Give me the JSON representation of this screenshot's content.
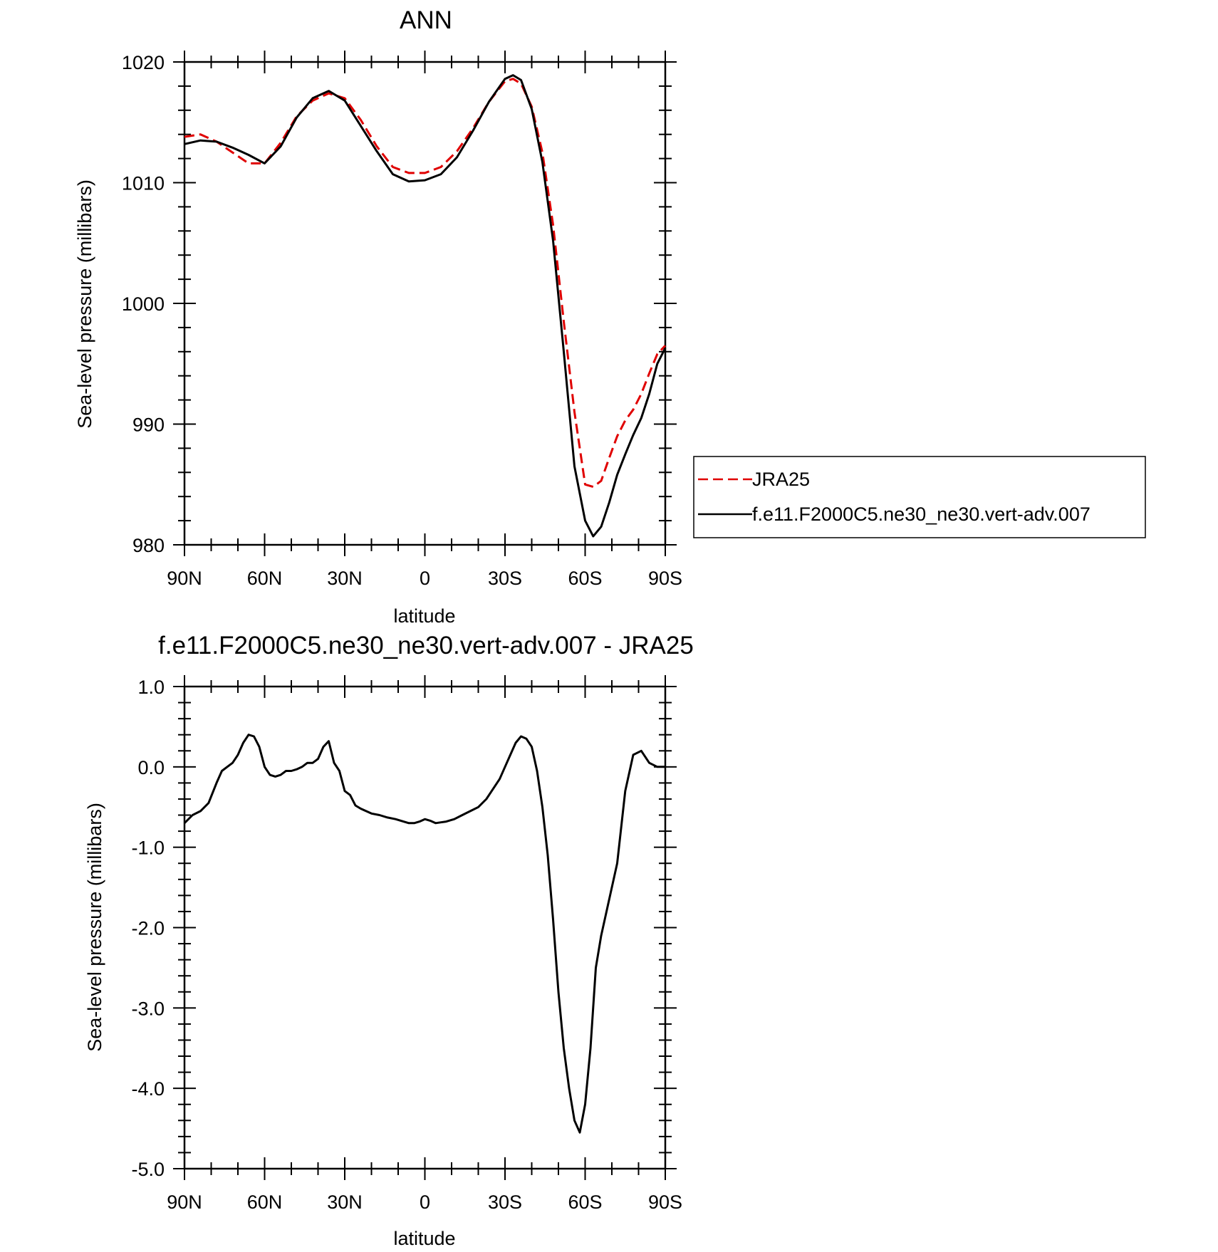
{
  "chart_data": [
    {
      "type": "line",
      "title": "ANN",
      "xlabel": "latitude",
      "ylabel": "Sea-level pressure (millibars)",
      "xlim": [
        90,
        -90
      ],
      "ylim": [
        980,
        1020
      ],
      "x_ticks": [
        90,
        60,
        30,
        0,
        -30,
        -60,
        -90
      ],
      "x_tick_labels": [
        "90N",
        "60N",
        "30N",
        "0",
        "30S",
        "60S",
        "90S"
      ],
      "y_ticks": [
        980,
        990,
        1000,
        1010,
        1020
      ],
      "y_tick_labels": [
        "980",
        "990",
        "1000",
        "1010",
        "1020"
      ],
      "grid": false,
      "legend_position": "right",
      "series": [
        {
          "name": "JRA25",
          "color": "#e00000",
          "dash": "dashed",
          "x": [
            90,
            84,
            78,
            72,
            66,
            60,
            54,
            48,
            42,
            36,
            30,
            24,
            18,
            12,
            6,
            0,
            -6,
            -12,
            -18,
            -24,
            -30,
            -33,
            -36,
            -40,
            -44,
            -48,
            -52,
            -56,
            -60,
            -63,
            -66,
            -69,
            -72,
            -75,
            -78,
            -81,
            -84,
            -87,
            -90
          ],
          "y": [
            1013.8,
            1014.0,
            1013.4,
            1012.5,
            1011.6,
            1011.6,
            1013.3,
            1015.5,
            1016.8,
            1017.4,
            1017.0,
            1015.2,
            1013.0,
            1011.3,
            1010.8,
            1010.8,
            1011.3,
            1012.6,
            1014.5,
            1016.7,
            1018.4,
            1018.6,
            1018.2,
            1016.3,
            1012.5,
            1006.5,
            998.5,
            991.0,
            985.0,
            984.8,
            985.3,
            987.2,
            989.0,
            990.3,
            991.2,
            992.5,
            994.2,
            995.8,
            996.5
          ]
        },
        {
          "name": "f.e11.F2000C5.ne30_ne30.vert-adv.007",
          "color": "#000000",
          "dash": "solid",
          "x": [
            90,
            84,
            78,
            72,
            66,
            60,
            54,
            48,
            42,
            36,
            30,
            24,
            18,
            12,
            6,
            0,
            -6,
            -12,
            -18,
            -24,
            -30,
            -33,
            -36,
            -40,
            -44,
            -48,
            -52,
            -56,
            -60,
            -63,
            -66,
            -69,
            -72,
            -75,
            -78,
            -81,
            -84,
            -87,
            -90
          ],
          "y": [
            1013.2,
            1013.5,
            1013.4,
            1012.9,
            1012.3,
            1011.6,
            1013.0,
            1015.4,
            1017.0,
            1017.6,
            1016.8,
            1014.7,
            1012.6,
            1010.7,
            1010.1,
            1010.2,
            1010.7,
            1012.1,
            1014.3,
            1016.7,
            1018.6,
            1018.9,
            1018.5,
            1016.1,
            1011.7,
            1005.2,
            996.0,
            986.5,
            982.0,
            980.7,
            981.5,
            983.5,
            985.8,
            987.5,
            989.1,
            990.5,
            992.5,
            995.0,
            996.3
          ]
        }
      ]
    },
    {
      "type": "line",
      "title": "f.e11.F2000C5.ne30_ne30.vert-adv.007 - JRA25",
      "xlabel": "latitude",
      "ylabel": "Sea-level pressure (millibars)",
      "xlim": [
        90,
        -90
      ],
      "ylim": [
        -5.0,
        1.0
      ],
      "x_ticks": [
        90,
        60,
        30,
        0,
        -30,
        -60,
        -90
      ],
      "x_tick_labels": [
        "90N",
        "60N",
        "30N",
        "0",
        "30S",
        "60S",
        "90S"
      ],
      "y_ticks": [
        -5,
        -4,
        -3,
        -2,
        -1,
        0,
        1
      ],
      "y_tick_labels": [
        "-5.0",
        "-4.0",
        "-3.0",
        "-2.0",
        "-1.0",
        "0.0",
        "1.0"
      ],
      "grid": false,
      "series": [
        {
          "color": "#000000",
          "dash": "solid",
          "x": [
            90,
            87,
            84,
            81,
            78,
            76,
            74,
            72,
            70,
            68,
            66,
            64,
            62,
            60,
            58,
            56,
            54,
            52,
            50,
            48,
            46,
            44,
            42,
            40,
            38,
            36,
            34,
            32,
            30,
            28,
            26,
            24,
            22,
            20,
            17,
            14,
            11,
            8,
            6,
            4,
            2,
            0,
            -2,
            -4,
            -6,
            -8,
            -11,
            -14,
            -17,
            -20,
            -23,
            -25,
            -28,
            -30,
            -32,
            -34,
            -36,
            -38,
            -40,
            -42,
            -44,
            -46,
            -48,
            -50,
            -52,
            -54,
            -56,
            -58,
            -60,
            -62,
            -64,
            -66,
            -68,
            -70,
            -72,
            -75,
            -78,
            -81,
            -84,
            -87,
            -90
          ],
          "y": [
            -0.7,
            -0.6,
            -0.55,
            -0.45,
            -0.2,
            -0.05,
            0.0,
            0.05,
            0.15,
            0.3,
            0.4,
            0.38,
            0.25,
            0.0,
            -0.1,
            -0.12,
            -0.1,
            -0.05,
            -0.05,
            -0.03,
            0.0,
            0.05,
            0.05,
            0.1,
            0.25,
            0.32,
            0.05,
            -0.05,
            -0.3,
            -0.35,
            -0.48,
            -0.52,
            -0.55,
            -0.58,
            -0.6,
            -0.63,
            -0.65,
            -0.68,
            -0.7,
            -0.7,
            -0.68,
            -0.65,
            -0.67,
            -0.7,
            -0.69,
            -0.68,
            -0.65,
            -0.6,
            -0.55,
            -0.5,
            -0.4,
            -0.3,
            -0.15,
            0.0,
            0.15,
            0.3,
            0.38,
            0.35,
            0.25,
            -0.05,
            -0.5,
            -1.1,
            -1.9,
            -2.8,
            -3.5,
            -4.0,
            -4.4,
            -4.55,
            -4.2,
            -3.5,
            -2.5,
            -2.1,
            -1.8,
            -1.5,
            -1.2,
            -0.3,
            0.15,
            0.2,
            0.05,
            0.0,
            0.0
          ]
        }
      ]
    }
  ]
}
